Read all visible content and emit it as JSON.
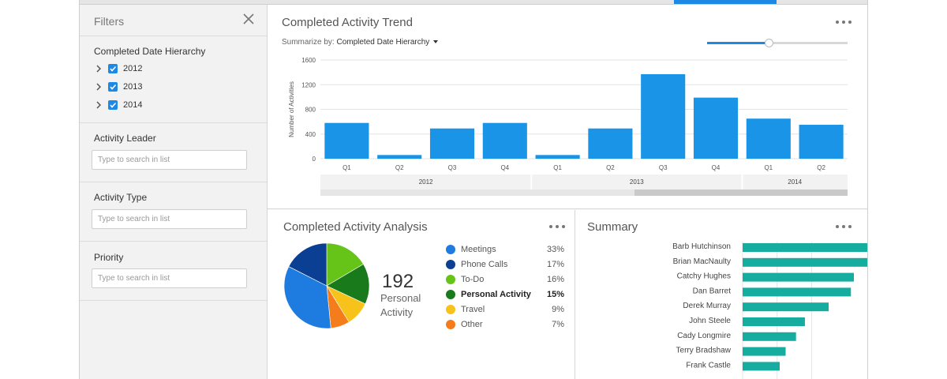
{
  "filters": {
    "title": "Filters",
    "date_hierarchy": {
      "label": "Completed Date Hierarchy",
      "years": [
        {
          "label": "2012",
          "checked": true
        },
        {
          "label": "2013",
          "checked": true
        },
        {
          "label": "2014",
          "checked": true
        }
      ]
    },
    "activity_leader": {
      "label": "Activity Leader",
      "placeholder": "Type to search in list"
    },
    "activity_type": {
      "label": "Activity Type",
      "placeholder": "Type to search in list"
    },
    "priority": {
      "label": "Priority",
      "placeholder": "Type to search in list"
    }
  },
  "trend": {
    "title": "Completed Activity Trend",
    "summarize_prefix": "Summarize by:",
    "summarize_value": "Completed Date Hierarchy",
    "slider_value": 0.44
  },
  "analysis": {
    "title": "Completed Activity Analysis",
    "total": "192",
    "total_label": "Personal Activity"
  },
  "summary": {
    "title": "Summary"
  },
  "colors": {
    "accent": "#1e88e5",
    "bar": "#1a94e6",
    "summary_bar": "#17aca0"
  },
  "chart_data": [
    {
      "type": "bar",
      "title": "Completed Activity Trend",
      "ylabel": "Number of Activities",
      "ylim": [
        0,
        1600
      ],
      "yticks": [
        0,
        400,
        800,
        1200,
        1600
      ],
      "grid": true,
      "categories": [
        "Q1",
        "Q2",
        "Q3",
        "Q4",
        "Q1",
        "Q2",
        "Q3",
        "Q4",
        "Q1",
        "Q2"
      ],
      "years": [
        {
          "label": "2012",
          "quarters": 4
        },
        {
          "label": "2013",
          "quarters": 4
        },
        {
          "label": "2014",
          "quarters": 2
        }
      ],
      "series": [
        {
          "values": [
            580,
            60,
            490,
            580,
            60,
            490,
            1370,
            990,
            650,
            550
          ],
          "color": "#1a94e6"
        }
      ]
    },
    {
      "type": "pie",
      "title": "Completed Activity Analysis",
      "slices": [
        {
          "label": "Meetings",
          "pct": "33%",
          "value": 33,
          "color": "#1e7be0"
        },
        {
          "label": "Phone Calls",
          "pct": "17%",
          "value": 17,
          "color": "#0b3f94"
        },
        {
          "label": "To-Do",
          "pct": "16%",
          "value": 16,
          "color": "#66c419"
        },
        {
          "label": "Personal Activity",
          "pct": "15%",
          "value": 15,
          "color": "#197a1c",
          "highlight": true
        },
        {
          "label": "Travel",
          "pct": "9%",
          "value": 9,
          "color": "#f7c21a"
        },
        {
          "label": "Other",
          "pct": "7%",
          "value": 7,
          "color": "#f57c1a"
        }
      ]
    },
    {
      "type": "bar",
      "orientation": "horizontal",
      "title": "Summary",
      "categories": [
        "Barb Hutchinson",
        "Brian MacNaulty",
        "Catchy Hughes",
        "Dan Barret",
        "Derek Murray",
        "John Steele",
        "Cady Longmire",
        "Terry Bradshaw",
        "Frank Castle"
      ],
      "values": [
        100,
        96,
        75,
        73,
        58,
        42,
        36,
        29,
        25
      ],
      "color": "#17aca0"
    }
  ]
}
